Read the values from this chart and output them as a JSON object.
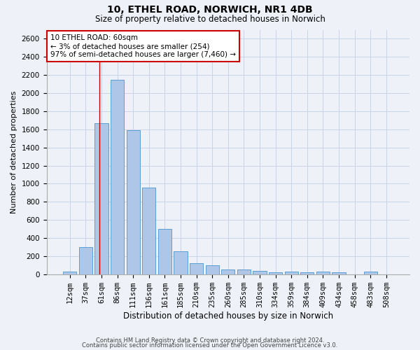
{
  "title1": "10, ETHEL ROAD, NORWICH, NR1 4DB",
  "title2": "Size of property relative to detached houses in Norwich",
  "xlabel": "Distribution of detached houses by size in Norwich",
  "ylabel": "Number of detached properties",
  "categories": [
    "12sqm",
    "37sqm",
    "61sqm",
    "86sqm",
    "111sqm",
    "136sqm",
    "161sqm",
    "185sqm",
    "210sqm",
    "235sqm",
    "260sqm",
    "285sqm",
    "310sqm",
    "334sqm",
    "359sqm",
    "384sqm",
    "409sqm",
    "434sqm",
    "458sqm",
    "483sqm",
    "508sqm"
  ],
  "values": [
    25,
    300,
    1670,
    2150,
    1590,
    960,
    500,
    250,
    120,
    100,
    50,
    50,
    40,
    20,
    30,
    20,
    30,
    20,
    0,
    30,
    0
  ],
  "bar_color": "#aec6e8",
  "bar_edge_color": "#5a9fd4",
  "bar_edge_width": 0.7,
  "grid_color": "#c8d4e8",
  "annotation_line1": "10 ETHEL ROAD: 60sqm",
  "annotation_line2": "← 3% of detached houses are smaller (254)",
  "annotation_line3": "97% of semi-detached houses are larger (7,460) →",
  "annotation_box_color": "#ffffff",
  "annotation_box_edge_color": "#cc0000",
  "red_line_x": 1.85,
  "ylim": [
    0,
    2700
  ],
  "yticks": [
    0,
    200,
    400,
    600,
    800,
    1000,
    1200,
    1400,
    1600,
    1800,
    2000,
    2200,
    2400,
    2600
  ],
  "footer1": "Contains HM Land Registry data © Crown copyright and database right 2024.",
  "footer2": "Contains public sector information licensed under the Open Government Licence v3.0.",
  "background_color": "#eef2f8",
  "title1_fontsize": 10,
  "title2_fontsize": 8.5,
  "xlabel_fontsize": 8.5,
  "ylabel_fontsize": 8,
  "tick_fontsize": 7.5,
  "annotation_fontsize": 7.5,
  "footer_fontsize": 6
}
